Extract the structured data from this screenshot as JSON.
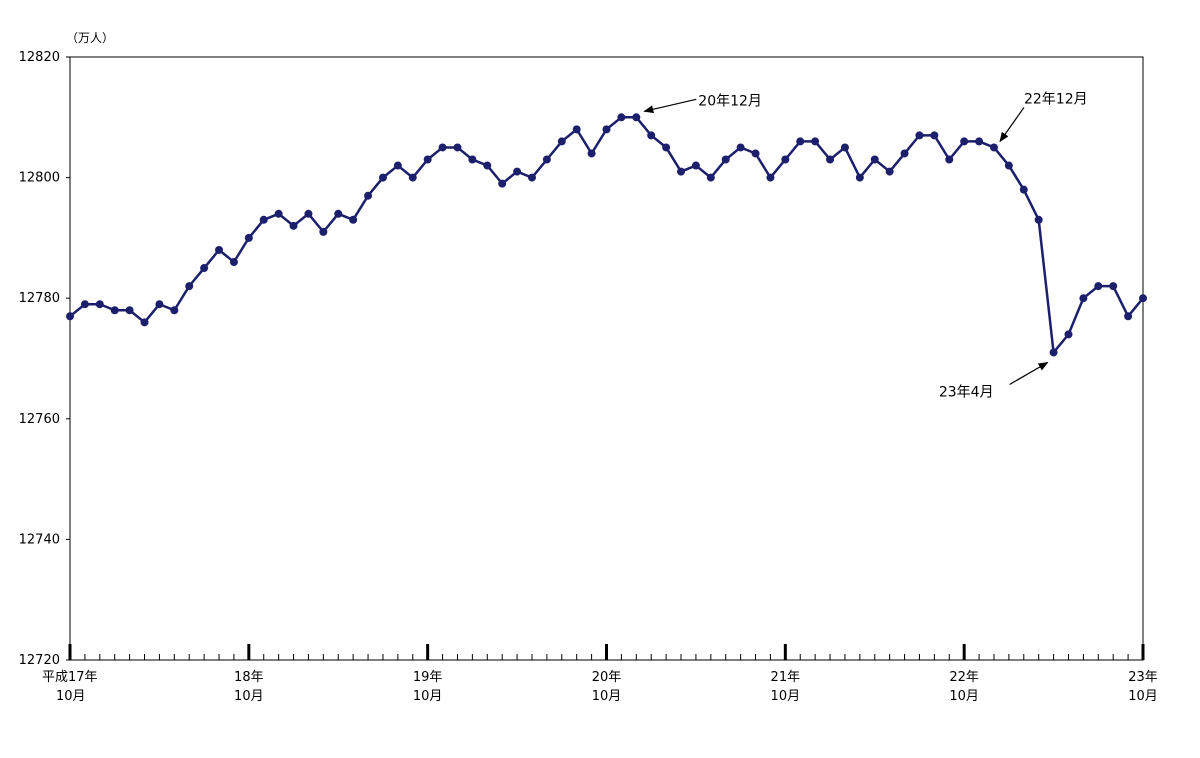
{
  "chart_data": {
    "type": "line",
    "title": "",
    "xlabel": "",
    "ylabel": "",
    "y_unit_label": "（万人）",
    "ylim": [
      12720,
      12820
    ],
    "yticks": [
      12720,
      12740,
      12760,
      12780,
      12800,
      12820
    ],
    "x_tick_labels": [
      {
        "line1": "平成17年",
        "line2": "10月"
      },
      {
        "line1": "18年",
        "line2": "10月"
      },
      {
        "line1": "19年",
        "line2": "10月"
      },
      {
        "line1": "20年",
        "line2": "10月"
      },
      {
        "line1": "21年",
        "line2": "10月"
      },
      {
        "line1": "22年",
        "line2": "10月"
      },
      {
        "line1": "23年",
        "line2": "10月"
      }
    ],
    "x_major_index": [
      0,
      12,
      24,
      36,
      48,
      60,
      72
    ],
    "series": [
      {
        "values": [
          12777,
          12779,
          12779,
          12778,
          12778,
          12776,
          12779,
          12778,
          12782,
          12785,
          12788,
          12786,
          12790,
          12793,
          12794,
          12792,
          12794,
          12791,
          12794,
          12793,
          12797,
          12800,
          12802,
          12800,
          12803,
          12805,
          12805,
          12803,
          12802,
          12799,
          12801,
          12800,
          12803,
          12806,
          12808,
          12804,
          12808,
          12810,
          12810,
          12807,
          12805,
          12801,
          12802,
          12800,
          12803,
          12805,
          12804,
          12800,
          12803,
          12806,
          12806,
          12803,
          12805,
          12800,
          12803,
          12801,
          12804,
          12807,
          12807,
          12803,
          12806,
          12806,
          12805,
          12802,
          12798,
          12793,
          12771,
          12774,
          12780,
          12782,
          12782,
          12777,
          12780
        ]
      }
    ],
    "annotations": [
      {
        "text": "20年12月",
        "index": 38
      },
      {
        "text": "22年12月",
        "index": 62
      },
      {
        "text": "23年4月",
        "index": 66
      }
    ],
    "colors": {
      "line": "#1c1f6b",
      "marker": "#1c1f6b",
      "axis": "#000000"
    },
    "grid": false,
    "legend": "none"
  }
}
